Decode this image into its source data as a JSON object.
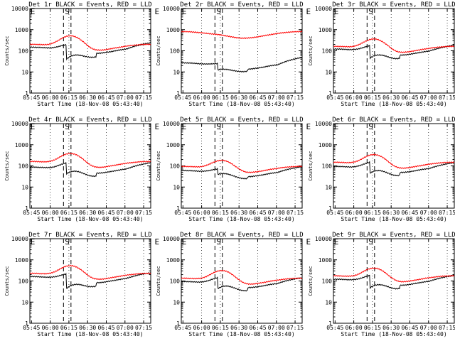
{
  "chart_data": [
    {
      "type": "line",
      "title": "Det 1r BLACK = Events, RED = LLD",
      "xlabel": "Start Time (18-Nov-08 05:43:40)",
      "ylabel": "Counts/sec",
      "ylim": [
        1,
        10000
      ],
      "yscale": "log",
      "x_ticks": [
        "05:45",
        "06:00",
        "06:15",
        "06:30",
        "06:45",
        "07:00",
        "07:15"
      ],
      "y_ticks": [
        "1",
        "10",
        "100",
        "1000",
        "10000"
      ],
      "markers": [
        {
          "label": "E",
          "t": 0
        },
        {
          "label": "S",
          "t": 30
        },
        {
          "label": "E",
          "t": 102
        }
      ],
      "series": [
        {
          "name": "Events",
          "color": "#000000",
          "base": 110,
          "bump": 1.0,
          "drop": 0.2,
          "drop_end": 1.6
        },
        {
          "name": "LLD",
          "color": "#ff0000",
          "base": 150,
          "bump": 2.6,
          "drop": 0,
          "drop_end": 1.0
        }
      ]
    },
    {
      "type": "line",
      "title": "Det 2r BLACK = Events, RED = LLD",
      "xlabel": "Start Time (18-Nov-08 05:43:40)",
      "ylabel": "Counts/sec",
      "ylim": [
        1,
        10000
      ],
      "yscale": "log",
      "x_ticks": [
        "05:45",
        "06:00",
        "06:15",
        "06:30",
        "06:45",
        "07:00",
        "07:15"
      ],
      "y_ticks": [
        "1",
        "10",
        "100",
        "1000",
        "10000"
      ],
      "markers": [
        {
          "label": "E",
          "t": 0
        },
        {
          "label": "S",
          "t": 30
        },
        {
          "label": "E",
          "t": 102
        }
      ],
      "series": [
        {
          "name": "Events",
          "color": "#000000",
          "base": 20,
          "bump": 0.4,
          "drop": 0.5,
          "drop_end": 1.8
        },
        {
          "name": "LLD",
          "color": "#ff0000",
          "base": 600,
          "bump": 0.1,
          "drop": 0,
          "drop_end": 1.0
        }
      ]
    },
    {
      "type": "line",
      "title": "Det 3r BLACK = Events, RED = LLD",
      "xlabel": "Start Time (18-Nov-08 05:43:40)",
      "ylabel": "Counts/sec",
      "ylim": [
        1,
        10000
      ],
      "yscale": "log",
      "x_ticks": [
        "05:45",
        "06:00",
        "06:15",
        "06:30",
        "06:45",
        "07:00",
        "07:15"
      ],
      "y_ticks": [
        "1",
        "10",
        "100",
        "1000",
        "10000"
      ],
      "markers": [
        {
          "label": "E",
          "t": 0
        },
        {
          "label": "S",
          "t": 30
        },
        {
          "label": "E",
          "t": 102
        }
      ],
      "series": [
        {
          "name": "Events",
          "color": "#000000",
          "base": 90,
          "bump": 1.2,
          "drop": 0.25,
          "drop_end": 1.5
        },
        {
          "name": "LLD",
          "color": "#ff0000",
          "base": 120,
          "bump": 2.2,
          "drop": 0,
          "drop_end": 1.0
        }
      ]
    },
    {
      "type": "line",
      "title": "Det 4r BLACK = Events, RED = LLD",
      "xlabel": "Start Time (18-Nov-08 05:43:40)",
      "ylabel": "Counts/sec",
      "ylim": [
        1,
        10000
      ],
      "yscale": "log",
      "x_ticks": [
        "05:45",
        "06:00",
        "06:15",
        "06:30",
        "06:45",
        "07:00",
        "07:15"
      ],
      "y_ticks": [
        "1",
        "10",
        "100",
        "1000",
        "10000"
      ],
      "markers": [
        {
          "label": "E",
          "t": 0
        },
        {
          "label": "S",
          "t": 30
        },
        {
          "label": "E",
          "t": 102
        }
      ],
      "series": [
        {
          "name": "Events",
          "color": "#000000",
          "base": 65,
          "bump": 1.4,
          "drop": 0.3,
          "drop_end": 1.6
        },
        {
          "name": "LLD",
          "color": "#ff0000",
          "base": 120,
          "bump": 2.4,
          "drop": 0,
          "drop_end": 1.0
        }
      ]
    },
    {
      "type": "line",
      "title": "Det 5r BLACK = Events, RED = LLD",
      "xlabel": "Start Time (18-Nov-08 05:43:40)",
      "ylabel": "Counts/sec",
      "ylim": [
        1,
        10000
      ],
      "yscale": "log",
      "x_ticks": [
        "05:45",
        "06:00",
        "06:15",
        "06:30",
        "06:45",
        "07:00",
        "07:15"
      ],
      "y_ticks": [
        "1",
        "10",
        "100",
        "1000",
        "10000"
      ],
      "markers": [
        {
          "label": "E",
          "t": 0
        },
        {
          "label": "S",
          "t": 30
        },
        {
          "label": "E",
          "t": 102
        }
      ],
      "series": [
        {
          "name": "Events",
          "color": "#000000",
          "base": 45,
          "bump": 0.8,
          "drop": 0.55,
          "drop_end": 1.5
        },
        {
          "name": "LLD",
          "color": "#ff0000",
          "base": 70,
          "bump": 1.8,
          "drop": 0,
          "drop_end": 1.0
        }
      ]
    },
    {
      "type": "line",
      "title": "Det 6r BLACK = Events, RED = LLD",
      "xlabel": "Start Time (18-Nov-08 05:43:40)",
      "ylabel": "Counts/sec",
      "ylim": [
        1,
        10000
      ],
      "yscale": "log",
      "x_ticks": [
        "05:45",
        "06:00",
        "06:15",
        "06:30",
        "06:45",
        "07:00",
        "07:15"
      ],
      "y_ticks": [
        "1",
        "10",
        "100",
        "1000",
        "10000"
      ],
      "markers": [
        {
          "label": "E",
          "t": 0
        },
        {
          "label": "S",
          "t": 30
        },
        {
          "label": "E",
          "t": 102
        }
      ],
      "series": [
        {
          "name": "Events",
          "color": "#000000",
          "base": 70,
          "bump": 1.4,
          "drop": 0.3,
          "drop_end": 1.5
        },
        {
          "name": "LLD",
          "color": "#ff0000",
          "base": 110,
          "bump": 2.3,
          "drop": 0,
          "drop_end": 1.0
        }
      ]
    },
    {
      "type": "line",
      "title": "Det 7r BLACK = Events, RED = LLD",
      "xlabel": "Start Time (18-Nov-08 05:43:40)",
      "ylabel": "Counts/sec",
      "ylim": [
        1,
        10000
      ],
      "yscale": "log",
      "x_ticks": [
        "05:45",
        "06:00",
        "06:15",
        "06:30",
        "06:45",
        "07:00",
        "07:15"
      ],
      "y_ticks": [
        "1",
        "10",
        "100",
        "1000",
        "10000"
      ],
      "markers": [
        {
          "label": "E",
          "t": 0
        },
        {
          "label": "S",
          "t": 30
        },
        {
          "label": "E",
          "t": 102
        }
      ],
      "series": [
        {
          "name": "Events",
          "color": "#000000",
          "base": 120,
          "bump": 1.0,
          "drop": 0.2,
          "drop_end": 1.5
        },
        {
          "name": "LLD",
          "color": "#ff0000",
          "base": 170,
          "bump": 2.3,
          "drop": 0,
          "drop_end": 1.0
        }
      ]
    },
    {
      "type": "line",
      "title": "Det 8r BLACK = Events, RED = LLD",
      "xlabel": "Start Time (18-Nov-08 05:43:40)",
      "ylabel": "Counts/sec",
      "ylim": [
        1,
        10000
      ],
      "yscale": "log",
      "x_ticks": [
        "05:45",
        "06:00",
        "06:15",
        "06:30",
        "06:45",
        "07:00",
        "07:15"
      ],
      "y_ticks": [
        "1",
        "10",
        "100",
        "1000",
        "10000"
      ],
      "markers": [
        {
          "label": "E",
          "t": 0
        },
        {
          "label": "S",
          "t": 30
        },
        {
          "label": "E",
          "t": 102
        }
      ],
      "series": [
        {
          "name": "Events",
          "color": "#000000",
          "base": 70,
          "bump": 1.3,
          "drop": 0.3,
          "drop_end": 1.5
        },
        {
          "name": "LLD",
          "color": "#ff0000",
          "base": 100,
          "bump": 2.3,
          "drop": 0,
          "drop_end": 1.0
        }
      ]
    },
    {
      "type": "line",
      "title": "Det 9r BLACK = Events, RED = LLD",
      "xlabel": "Start Time (18-Nov-08 05:43:40)",
      "ylabel": "Counts/sec",
      "ylim": [
        1,
        10000
      ],
      "yscale": "log",
      "x_ticks": [
        "05:45",
        "06:00",
        "06:15",
        "06:30",
        "06:45",
        "07:00",
        "07:15"
      ],
      "y_ticks": [
        "1",
        "10",
        "100",
        "1000",
        "10000"
      ],
      "markers": [
        {
          "label": "E",
          "t": 0
        },
        {
          "label": "S",
          "t": 30
        },
        {
          "label": "E",
          "t": 102
        }
      ],
      "series": [
        {
          "name": "Events",
          "color": "#000000",
          "base": 90,
          "bump": 1.3,
          "drop": 0.25,
          "drop_end": 1.5
        },
        {
          "name": "LLD",
          "color": "#ff0000",
          "base": 130,
          "bump": 2.3,
          "drop": 0,
          "drop_end": 1.0
        }
      ]
    }
  ]
}
